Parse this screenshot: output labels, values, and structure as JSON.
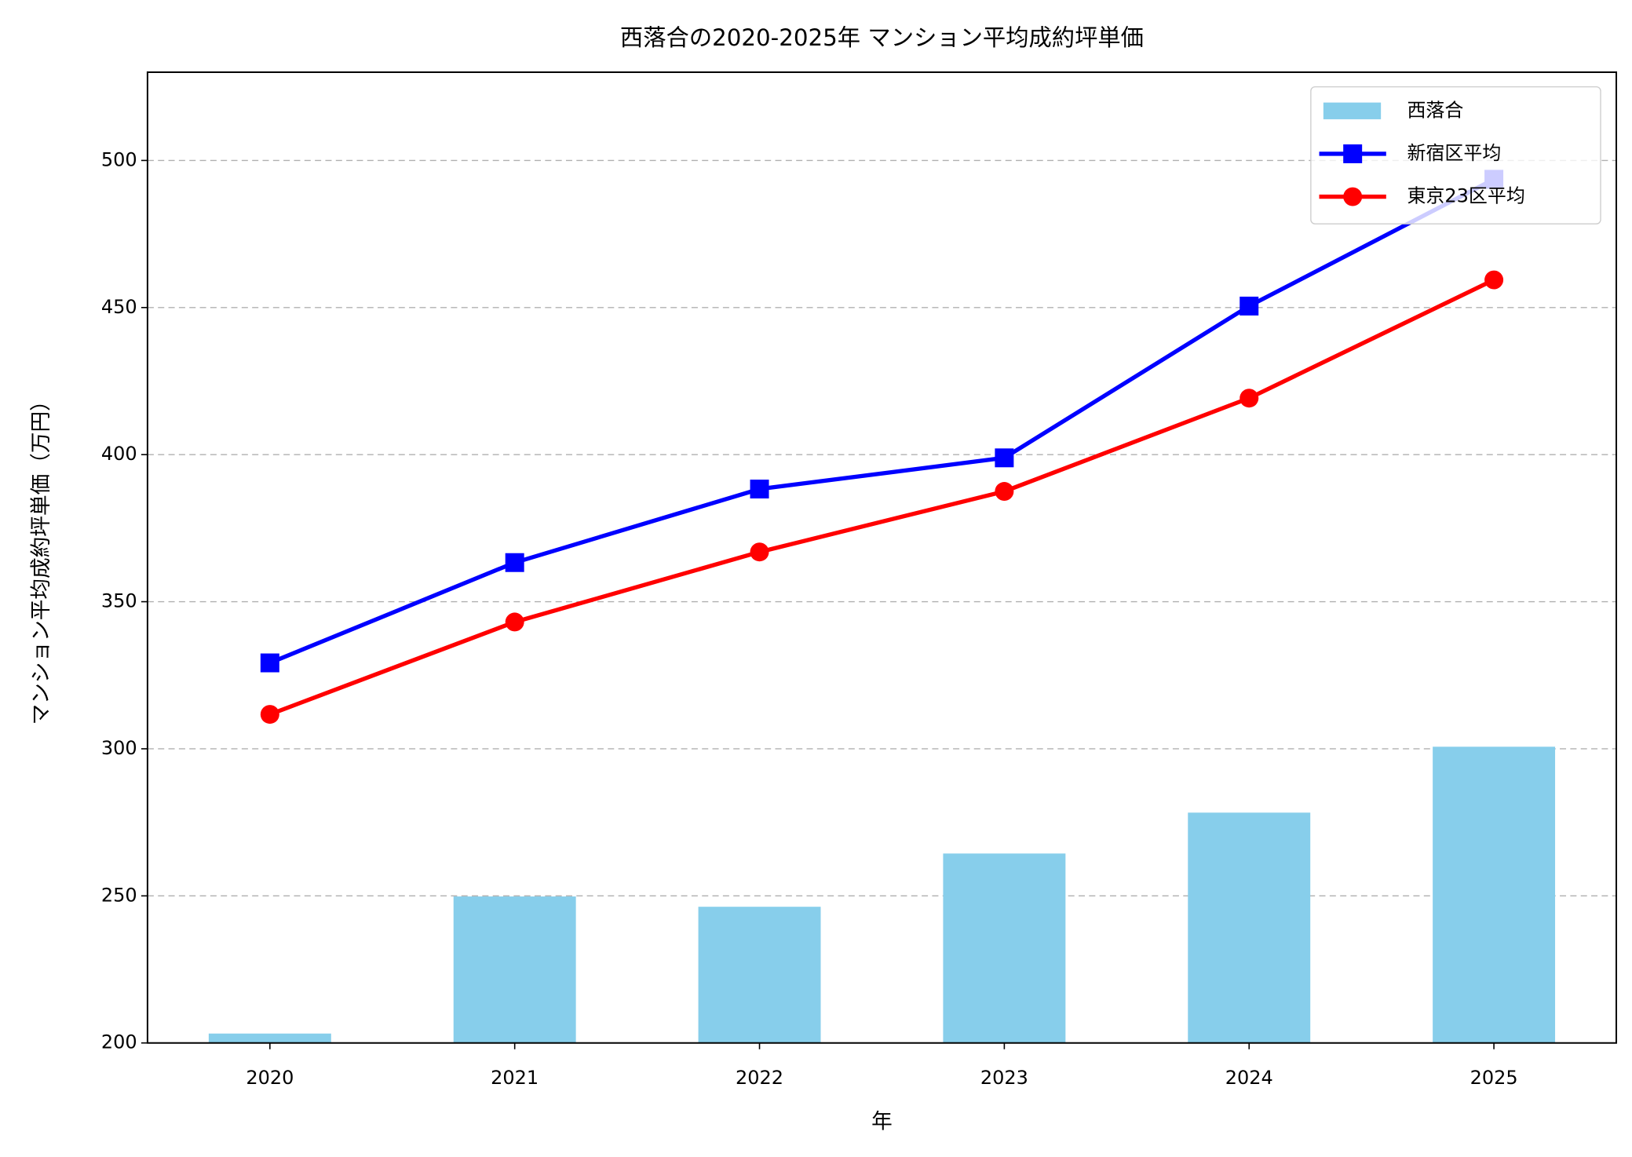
{
  "chart_data": {
    "type": "bar",
    "title": "西落合の2020-2025年 マンション平均成約坪単価",
    "x_label": "年",
    "y_label": "マンション平均成約坪単価（万円）",
    "categories": [
      "2020",
      "2021",
      "2022",
      "2023",
      "2024",
      "2025"
    ],
    "series": [
      {
        "name": "西落合",
        "type": "bar",
        "color": "#87ceeb",
        "values": [
          203.2,
          249.8,
          246.3,
          264.4,
          278.3,
          300.7
        ]
      },
      {
        "name": "新宿区平均",
        "type": "line",
        "marker": "square",
        "color": "#0000ff",
        "values": [
          329.2,
          363.3,
          388.3,
          398.9,
          450.5,
          493.6
        ]
      },
      {
        "name": "東京23区平均",
        "type": "line",
        "marker": "circle",
        "color": "#ff0000",
        "values": [
          311.7,
          343.1,
          366.9,
          387.5,
          419.2,
          459.4
        ]
      }
    ],
    "ylim": [
      200,
      530
    ],
    "yticks": [
      200,
      250,
      300,
      350,
      400,
      450,
      500
    ],
    "grid": true,
    "legend": "upper right"
  }
}
